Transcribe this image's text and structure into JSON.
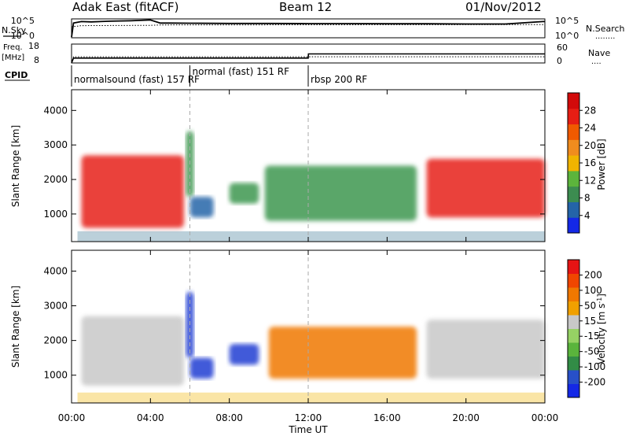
{
  "header": {
    "station": "Adak East (fitACF)",
    "beam": "Beam 12",
    "date": "01/Nov/2012"
  },
  "labels": {
    "nsky": "N.Sky",
    "nsearch": "N.Search",
    "nsearch_dots": "........",
    "freq": "Freq.",
    "freq_unit": "[MHz]",
    "nave": "Nave",
    "nave_dots": "....",
    "cpid": "CPID"
  },
  "chart_data": [
    {
      "type": "line",
      "name": "noise-panel",
      "left_ticks": [
        "10^5",
        "10^0"
      ],
      "right_ticks": [
        "10^5",
        "10^0"
      ],
      "x_range_hours": [
        0,
        24
      ],
      "series": [
        {
          "name": "N.Sky",
          "style": "solid",
          "x": [
            0,
            0.1,
            0.5,
            1,
            2,
            3,
            4,
            4.5,
            5,
            6,
            8,
            10,
            12,
            14,
            16,
            18,
            20,
            22,
            23.9,
            24
          ],
          "y": [
            0.2,
            3.9,
            4.3,
            4.2,
            4.4,
            4.5,
            4.7,
            3.9,
            3.9,
            3.85,
            3.8,
            3.8,
            3.75,
            3.75,
            3.7,
            3.7,
            3.65,
            3.65,
            4.3,
            4.3
          ]
        },
        {
          "name": "N.Search",
          "style": "dotted",
          "x": [
            0,
            0.5,
            4,
            4.5,
            24
          ],
          "y": [
            2.9,
            3.2,
            3.3,
            3.4,
            3.5
          ]
        }
      ]
    },
    {
      "type": "line",
      "name": "frequency-panel",
      "left_ticks": [
        "18",
        "8"
      ],
      "right_ticks": [
        "60",
        "0"
      ],
      "x_range_hours": [
        0,
        24
      ],
      "series": [
        {
          "name": "Freq.",
          "style": "solid",
          "x": [
            0,
            0.1,
            12,
            12.01,
            24
          ],
          "y": [
            8,
            10.6,
            10.6,
            12.8,
            12.8
          ]
        },
        {
          "name": "Nave",
          "style": "dotted",
          "x": [
            0,
            0.1,
            24
          ],
          "y": [
            8,
            11.3,
            11.3
          ]
        }
      ]
    },
    {
      "type": "table",
      "name": "cpid-strip",
      "segments": [
        {
          "label": "normalsound (fast) 157 RF",
          "start": 0,
          "end": 6
        },
        {
          "label": "normal (fast) 151 RF",
          "start": 6,
          "end": 12
        },
        {
          "label": "rbsp 200 RF",
          "start": 12,
          "end": 24
        }
      ]
    },
    {
      "type": "heatmap",
      "name": "power-panel",
      "ylabel": "Slant Range [km]",
      "yticks": [
        1000,
        2000,
        3000,
        4000
      ],
      "ylim": [
        200,
        4600
      ],
      "colorbar": {
        "label": "Power [dB]",
        "ticks": [
          "28",
          "24",
          "20",
          "16",
          "12",
          "8",
          "4"
        ],
        "colors": [
          "#1428e6",
          "#2464a8",
          "#3c8c50",
          "#5cb43c",
          "#f0b400",
          "#f08c1e",
          "#f05a00",
          "#e61e14",
          "#d20a0a"
        ]
      },
      "echo_regions": [
        {
          "hours": [
            0.5,
            5.7
          ],
          "range_km": [
            600,
            2700
          ],
          "level": "high"
        },
        {
          "hours": [
            5.8,
            6.2
          ],
          "range_km": [
            1500,
            3400
          ],
          "level": "mid"
        },
        {
          "hours": [
            6.0,
            7.2
          ],
          "range_km": [
            900,
            1500
          ],
          "level": "low"
        },
        {
          "hours": [
            8.0,
            9.5
          ],
          "range_km": [
            1300,
            1900
          ],
          "level": "mid"
        },
        {
          "hours": [
            9.8,
            17.5
          ],
          "range_km": [
            800,
            2400
          ],
          "level": "mid"
        },
        {
          "hours": [
            18.0,
            24.0
          ],
          "range_km": [
            900,
            2600
          ],
          "level": "high"
        }
      ]
    },
    {
      "type": "heatmap",
      "name": "velocity-panel",
      "xlabel": "Time UT",
      "xticks": [
        "00:00",
        "04:00",
        "08:00",
        "12:00",
        "16:00",
        "20:00",
        "00:00"
      ],
      "ylabel": "Slant Range [km]",
      "yticks": [
        1000,
        2000,
        3000,
        4000
      ],
      "ylim": [
        200,
        4600
      ],
      "colorbar": {
        "label": "Velocity [m s",
        "unit_exp": "-1",
        "unit_tail": "]",
        "ticks": [
          "200",
          "100",
          "50",
          "15",
          "-15",
          "-50",
          "-100",
          "-200"
        ],
        "colors": [
          "#1428e6",
          "#2850c8",
          "#328c46",
          "#5ab43c",
          "#96d264",
          "#c8c8c8",
          "#f0a000",
          "#f07800",
          "#f04600",
          "#e61414"
        ]
      },
      "echo_regions": [
        {
          "hours": [
            0.5,
            5.7
          ],
          "range_km": [
            700,
            2700
          ],
          "velocity": "near zero"
        },
        {
          "hours": [
            5.8,
            6.2
          ],
          "range_km": [
            1500,
            3400
          ],
          "velocity": "toward"
        },
        {
          "hours": [
            6.0,
            7.2
          ],
          "range_km": [
            900,
            1500
          ],
          "velocity": "toward"
        },
        {
          "hours": [
            8.0,
            9.5
          ],
          "range_km": [
            1300,
            1900
          ],
          "velocity": "toward"
        },
        {
          "hours": [
            10.0,
            17.5
          ],
          "range_km": [
            900,
            2400
          ],
          "velocity": "away"
        },
        {
          "hours": [
            18.0,
            24.0
          ],
          "range_km": [
            900,
            2600
          ],
          "velocity": "near zero"
        }
      ]
    }
  ]
}
